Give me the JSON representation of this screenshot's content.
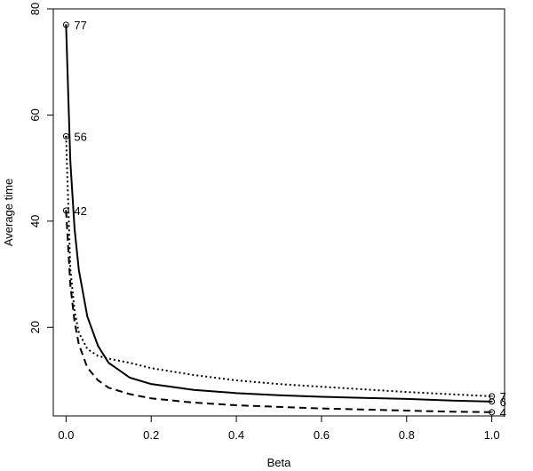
{
  "chart_data": {
    "type": "line",
    "xlabel": "Beta",
    "ylabel": "Average time",
    "xlim": [
      -0.03,
      1.03
    ],
    "ylim": [
      3.3,
      80
    ],
    "xticks": [
      0.0,
      0.2,
      0.4,
      0.6,
      0.8,
      1.0
    ],
    "xtick_labels": [
      "0.0",
      "0.2",
      "0.4",
      "0.6",
      "0.8",
      "1.0"
    ],
    "yticks": [
      20,
      40,
      60,
      80
    ],
    "ytick_labels": [
      "20",
      "40",
      "60",
      "80"
    ],
    "grid": false,
    "x": [
      0.0,
      0.01,
      0.02,
      0.03,
      0.05,
      0.075,
      0.1,
      0.15,
      0.2,
      0.3,
      0.4,
      0.5,
      0.6,
      0.7,
      0.8,
      0.9,
      1.0
    ],
    "series": [
      {
        "style": "solid",
        "values": [
          77,
          51.3,
          38.5,
          30.8,
          22.0,
          16.5,
          13.3,
          10.5,
          9.3,
          8.2,
          7.6,
          7.2,
          6.9,
          6.7,
          6.5,
          6.2,
          6.0
        ],
        "start_label": "77",
        "end_label": "6"
      },
      {
        "style": "dotted",
        "values": [
          56,
          31.0,
          23.0,
          19.0,
          15.9,
          14.6,
          14.1,
          13.3,
          12.3,
          11.0,
          10.0,
          9.3,
          8.8,
          8.3,
          7.8,
          7.4,
          7.0
        ],
        "start_label": "56",
        "end_label": "7"
      },
      {
        "style": "dashed",
        "values": [
          42,
          28.0,
          21.0,
          16.8,
          12.4,
          10.0,
          8.6,
          7.4,
          6.6,
          5.8,
          5.3,
          5.0,
          4.7,
          4.5,
          4.3,
          4.1,
          4.0
        ],
        "start_label": "42",
        "end_label": "4"
      }
    ]
  }
}
